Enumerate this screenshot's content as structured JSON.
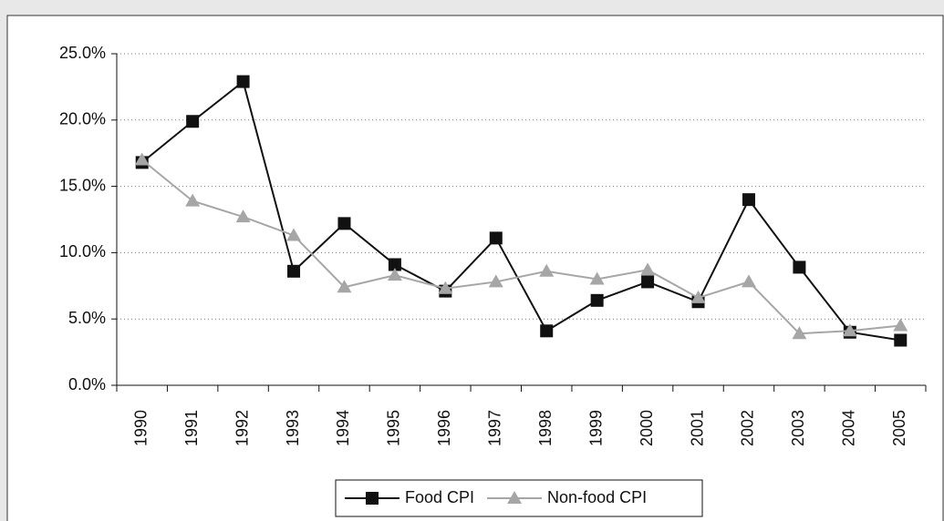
{
  "chart_data": {
    "type": "line",
    "categories": [
      "1990",
      "1991",
      "1992",
      "1993",
      "1994",
      "1995",
      "1996",
      "1997",
      "1998",
      "1999",
      "2000",
      "2001",
      "2002",
      "2003",
      "2004",
      "2005"
    ],
    "series": [
      {
        "name": "Food CPI",
        "color": "#111111",
        "marker": "square",
        "values": [
          16.8,
          19.9,
          22.9,
          8.6,
          12.2,
          9.1,
          7.1,
          11.1,
          4.1,
          6.4,
          7.8,
          6.3,
          14.0,
          8.9,
          4.0,
          3.4
        ]
      },
      {
        "name": "Non-food CPI",
        "color": "#a6a6a6",
        "marker": "triangle",
        "values": [
          17.0,
          13.9,
          12.7,
          11.3,
          7.4,
          8.3,
          7.3,
          7.8,
          8.6,
          8.0,
          8.7,
          6.6,
          7.8,
          3.9,
          4.1,
          4.5
        ]
      }
    ],
    "ylim": [
      0,
      25
    ],
    "yticks": [
      {
        "value": 0,
        "label": "0.0%"
      },
      {
        "value": 5,
        "label": "5.0%"
      },
      {
        "value": 10,
        "label": "10.0%"
      },
      {
        "value": 15,
        "label": "15.0%"
      },
      {
        "value": 20,
        "label": "20.0%"
      },
      {
        "value": 25,
        "label": "25.0%"
      }
    ],
    "grid": true,
    "legend": "bottom"
  }
}
